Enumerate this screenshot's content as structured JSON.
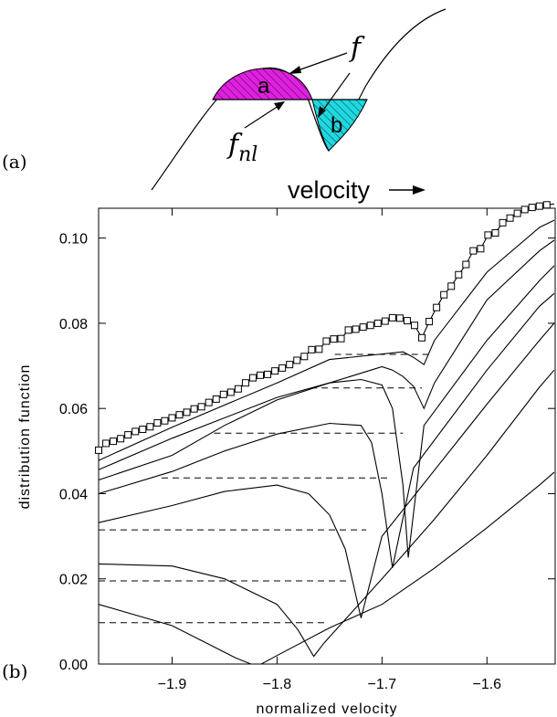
{
  "panel_a": {
    "label": "(a)",
    "region_a_label": "a",
    "region_b_label": "b",
    "curve_label": "f",
    "nl_base_label": "f",
    "nl_sub_label": "nl",
    "velocity_label": "velocity"
  },
  "panel_b": {
    "label": "(b)"
  },
  "colors": {
    "region_a_fill": "#e020e0",
    "region_b_fill": "#20d8e0",
    "line": "#000000"
  },
  "chart_data": {
    "type": "line",
    "xlabel": "normalized velocity",
    "ylabel": "distribution function",
    "xlim": [
      -1.97,
      -1.535
    ],
    "ylim": [
      0.0,
      0.107
    ],
    "xticks": [
      -1.9,
      -1.8,
      -1.7,
      -1.6
    ],
    "xtick_labels": [
      "−1.9",
      "−1.8",
      "−1.7",
      "−1.6"
    ],
    "yticks": [
      0.0,
      0.02,
      0.04,
      0.06,
      0.08,
      0.1
    ],
    "ytick_labels": [
      "0.00",
      "0.02",
      "0.04",
      "0.06",
      "0.08",
      "0.10"
    ],
    "grid": false,
    "markers_series": {
      "x": [
        -1.97,
        -1.963,
        -1.956,
        -1.949,
        -1.942,
        -1.935,
        -1.928,
        -1.921,
        -1.914,
        -1.907,
        -1.9,
        -1.893,
        -1.886,
        -1.879,
        -1.872,
        -1.865,
        -1.858,
        -1.851,
        -1.844,
        -1.837,
        -1.83,
        -1.823,
        -1.816,
        -1.809,
        -1.802,
        -1.795,
        -1.788,
        -1.781,
        -1.774,
        -1.767,
        -1.76,
        -1.753,
        -1.746,
        -1.739,
        -1.732,
        -1.725,
        -1.718,
        -1.711,
        -1.704,
        -1.697,
        -1.69,
        -1.683,
        -1.676,
        -1.669,
        -1.662,
        -1.655,
        -1.648,
        -1.641,
        -1.634,
        -1.627,
        -1.62,
        -1.613,
        -1.606,
        -1.599,
        -1.592,
        -1.585,
        -1.578,
        -1.571,
        -1.564,
        -1.557,
        -1.55,
        -1.543,
        -1.536
      ],
      "y": [
        0.0502,
        0.0518,
        0.0523,
        0.0529,
        0.0538,
        0.0546,
        0.0551,
        0.0557,
        0.0566,
        0.0571,
        0.0578,
        0.0585,
        0.0591,
        0.0599,
        0.0604,
        0.0614,
        0.0622,
        0.0633,
        0.0638,
        0.0646,
        0.066,
        0.0672,
        0.0678,
        0.068,
        0.0688,
        0.0695,
        0.0703,
        0.0713,
        0.0722,
        0.0738,
        0.0739,
        0.0758,
        0.0763,
        0.0764,
        0.0784,
        0.0786,
        0.0791,
        0.0795,
        0.08,
        0.0805,
        0.0813,
        0.0812,
        0.0806,
        0.0795,
        0.0766,
        0.0804,
        0.0837,
        0.0867,
        0.0887,
        0.0914,
        0.0938,
        0.097,
        0.0975,
        0.1007,
        0.1012,
        0.1036,
        0.1047,
        0.1058,
        0.1067,
        0.1072,
        0.1075,
        0.1078,
        0.108
      ]
    },
    "series": [
      {
        "x": [
          -1.97,
          -1.9,
          -1.8,
          -1.75,
          -1.68,
          -1.67,
          -1.66,
          -1.65,
          -1.6,
          -1.55,
          -1.536
        ],
        "y": [
          0.0478,
          0.0556,
          0.066,
          0.0715,
          0.0733,
          0.072,
          0.0703,
          0.076,
          0.092,
          0.1025,
          0.1042
        ]
      },
      {
        "x": [
          -1.97,
          -1.9,
          -1.8,
          -1.75,
          -1.7,
          -1.69,
          -1.68,
          -1.67,
          -1.66,
          -1.65,
          -1.6,
          -1.55,
          -1.536
        ],
        "y": [
          0.0456,
          0.053,
          0.0626,
          0.066,
          0.0698,
          0.069,
          0.0675,
          0.0652,
          0.06,
          0.066,
          0.0855,
          0.097,
          0.0995
        ]
      },
      {
        "x": [
          -1.97,
          -1.9,
          -1.85,
          -1.8,
          -1.75,
          -1.72,
          -1.7,
          -1.69,
          -1.68,
          -1.675,
          -1.66,
          -1.6,
          -1.55,
          -1.536
        ],
        "y": [
          0.0432,
          0.049,
          0.056,
          0.062,
          0.066,
          0.0668,
          0.0655,
          0.06,
          0.042,
          0.025,
          0.056,
          0.076,
          0.09,
          0.0935
        ]
      },
      {
        "x": [
          -1.97,
          -1.9,
          -1.85,
          -1.8,
          -1.75,
          -1.72,
          -1.71,
          -1.7,
          -1.69,
          -1.67,
          -1.6,
          -1.55,
          -1.536
        ],
        "y": [
          0.04,
          0.0452,
          0.05,
          0.054,
          0.0565,
          0.056,
          0.052,
          0.04,
          0.0226,
          0.046,
          0.069,
          0.084,
          0.087
        ]
      },
      {
        "x": [
          -1.97,
          -1.9,
          -1.85,
          -1.8,
          -1.77,
          -1.75,
          -1.735,
          -1.72,
          -1.7,
          -1.6,
          -1.55,
          -1.536
        ],
        "y": [
          0.0332,
          0.0372,
          0.0405,
          0.042,
          0.04,
          0.035,
          0.027,
          0.0108,
          0.03,
          0.061,
          0.076,
          0.08
        ]
      },
      {
        "x": [
          -1.97,
          -1.9,
          -1.85,
          -1.8,
          -1.78,
          -1.765,
          -1.755,
          -1.7,
          -1.65,
          -1.6,
          -1.55,
          -1.536
        ],
        "y": [
          0.0235,
          0.023,
          0.02,
          0.014,
          0.008,
          0.0018,
          0.005,
          0.02,
          0.034,
          0.049,
          0.065,
          0.069
        ]
      },
      {
        "x": [
          -1.97,
          -1.9,
          -1.86,
          -1.84,
          -1.825,
          -1.815,
          -1.8,
          -1.75,
          -1.7,
          -1.65,
          -1.6,
          -1.55,
          -1.536
        ],
        "y": [
          0.014,
          0.009,
          0.004,
          0.0015,
          0.0,
          0.0,
          0.002,
          0.0085,
          0.014,
          0.0225,
          0.032,
          0.042,
          0.045
        ]
      }
    ],
    "plateaus": [
      {
        "x1": -1.745,
        "x2": -1.655,
        "y": 0.0727
      },
      {
        "x1": -1.768,
        "x2": -1.662,
        "y": 0.0648
      },
      {
        "x1": -1.86,
        "x2": -1.68,
        "y": 0.0542
      },
      {
        "x1": -1.91,
        "x2": -1.695,
        "y": 0.0437
      },
      {
        "x1": -1.97,
        "x2": -1.715,
        "y": 0.0315
      },
      {
        "x1": -1.97,
        "x2": -1.73,
        "y": 0.0195
      },
      {
        "x1": -1.97,
        "x2": -1.755,
        "y": 0.0097
      }
    ]
  }
}
